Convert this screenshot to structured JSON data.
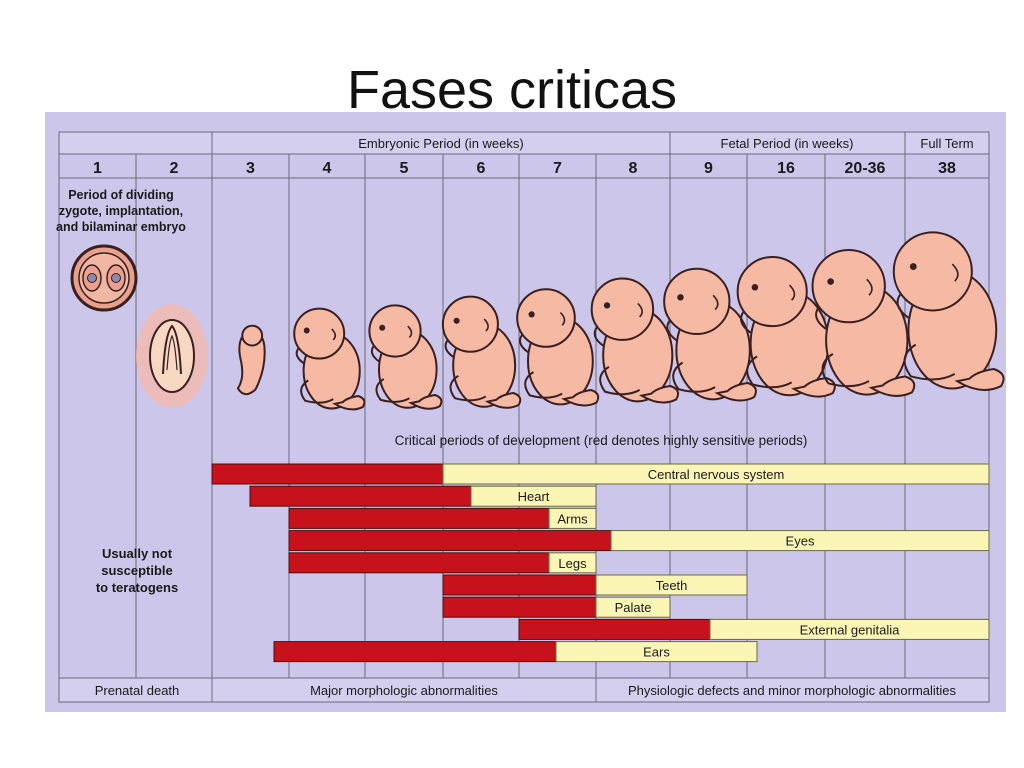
{
  "slide": {
    "title": "Fases criticas"
  },
  "periods": {
    "embryonic": "Embryonic Period (in weeks)",
    "fetal": "Fetal Period (in weeks)",
    "full_term": "Full Term"
  },
  "weeks": [
    "1",
    "2",
    "3",
    "4",
    "5",
    "6",
    "7",
    "8",
    "9",
    "16",
    "20-36",
    "38"
  ],
  "early_note": [
    "Period of dividing",
    "zygote, implantation,",
    "and bilaminar embryo"
  ],
  "critical_title": "Critical periods of development (red denotes highly sensitive periods)",
  "not_susceptible": [
    "Usually not",
    "susceptible",
    "to teratogens"
  ],
  "organs": [
    {
      "label": "Central nervous system",
      "red": [
        "3",
        "6"
      ],
      "yellow": [
        "6",
        "38"
      ]
    },
    {
      "label": "Heart",
      "red": [
        "3",
        "6"
      ],
      "yellow": [
        "6",
        "8"
      ]
    },
    {
      "label": "Arms",
      "red": [
        "4",
        "7"
      ],
      "yellow": [
        "7",
        "8"
      ]
    },
    {
      "label": "Eyes",
      "red": [
        "4",
        "8"
      ],
      "yellow": [
        "8",
        "38"
      ]
    },
    {
      "label": "Legs",
      "red": [
        "4",
        "7"
      ],
      "yellow": [
        "7",
        "8"
      ]
    },
    {
      "label": "Teeth",
      "red": [
        "6",
        "8"
      ],
      "yellow": [
        "8",
        "16"
      ]
    },
    {
      "label": "Palate",
      "red": [
        "6",
        "8"
      ],
      "yellow": [
        "8",
        "9"
      ]
    },
    {
      "label": "External genitalia",
      "red": [
        "7",
        "9"
      ],
      "yellow": [
        "9",
        "38"
      ]
    },
    {
      "label": "Ears",
      "red": [
        "4",
        "8"
      ],
      "yellow": [
        "8",
        "16"
      ]
    }
  ],
  "footer": {
    "prenatal_death": "Prenatal death",
    "major": "Major morphologic abnormalities",
    "physiologic": "Physiologic defects and minor morphologic abnormalities"
  },
  "colors": {
    "background": "#ccc6ea",
    "highly_sensitive": "#c8121b",
    "less_sensitive": "#fbf6b5",
    "embryo": "#f6b9a3",
    "outline": "#3a2020"
  }
}
